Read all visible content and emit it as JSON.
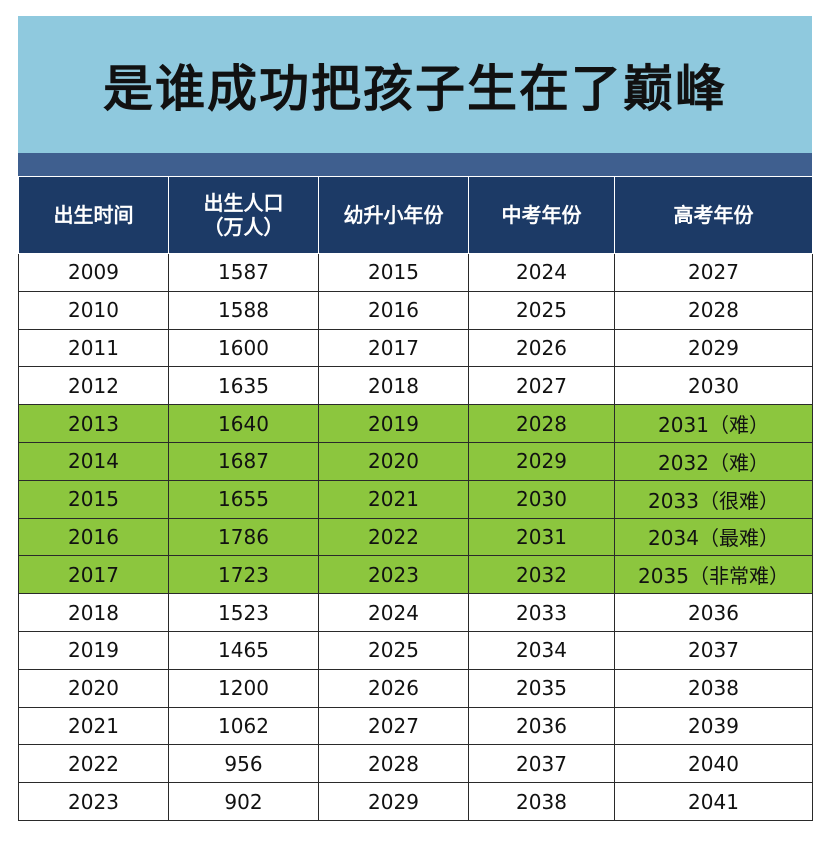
{
  "title": "是谁成功把孩子生在了巅峰",
  "colors": {
    "banner": "#8fc9de",
    "stripe": "#3f5f8f",
    "header": "#1c3a66",
    "highlight": "#8cc63e"
  },
  "headers": [
    {
      "line1": "出生时间",
      "line2": ""
    },
    {
      "line1": "出生人口",
      "line2": "（万人）"
    },
    {
      "line1": "幼升小年份",
      "line2": ""
    },
    {
      "line1": "中考年份",
      "line2": ""
    },
    {
      "line1": "高考年份",
      "line2": ""
    }
  ],
  "rows": [
    {
      "cells": [
        "2009",
        "1587",
        "2015",
        "2024",
        "2027"
      ],
      "highlight": false
    },
    {
      "cells": [
        "2010",
        "1588",
        "2016",
        "2025",
        "2028"
      ],
      "highlight": false
    },
    {
      "cells": [
        "2011",
        "1600",
        "2017",
        "2026",
        "2029"
      ],
      "highlight": false
    },
    {
      "cells": [
        "2012",
        "1635",
        "2018",
        "2027",
        "2030"
      ],
      "highlight": false
    },
    {
      "cells": [
        "2013",
        "1640",
        "2019",
        "2028",
        "2031（难）"
      ],
      "highlight": true
    },
    {
      "cells": [
        "2014",
        "1687",
        "2020",
        "2029",
        "2032（难）"
      ],
      "highlight": true
    },
    {
      "cells": [
        "2015",
        "1655",
        "2021",
        "2030",
        "2033（很难）"
      ],
      "highlight": true
    },
    {
      "cells": [
        "2016",
        "1786",
        "2022",
        "2031",
        "2034（最难）"
      ],
      "highlight": true
    },
    {
      "cells": [
        "2017",
        "1723",
        "2023",
        "2032",
        "2035（非常难）"
      ],
      "highlight": true
    },
    {
      "cells": [
        "2018",
        "1523",
        "2024",
        "2033",
        "2036"
      ],
      "highlight": false
    },
    {
      "cells": [
        "2019",
        "1465",
        "2025",
        "2034",
        "2037"
      ],
      "highlight": false
    },
    {
      "cells": [
        "2020",
        "1200",
        "2026",
        "2035",
        "2038"
      ],
      "highlight": false
    },
    {
      "cells": [
        "2021",
        "1062",
        "2027",
        "2036",
        "2039"
      ],
      "highlight": false
    },
    {
      "cells": [
        "2022",
        "956",
        "2028",
        "2037",
        "2040"
      ],
      "highlight": false
    },
    {
      "cells": [
        "2023",
        "902",
        "2029",
        "2038",
        "2041"
      ],
      "highlight": false
    }
  ]
}
